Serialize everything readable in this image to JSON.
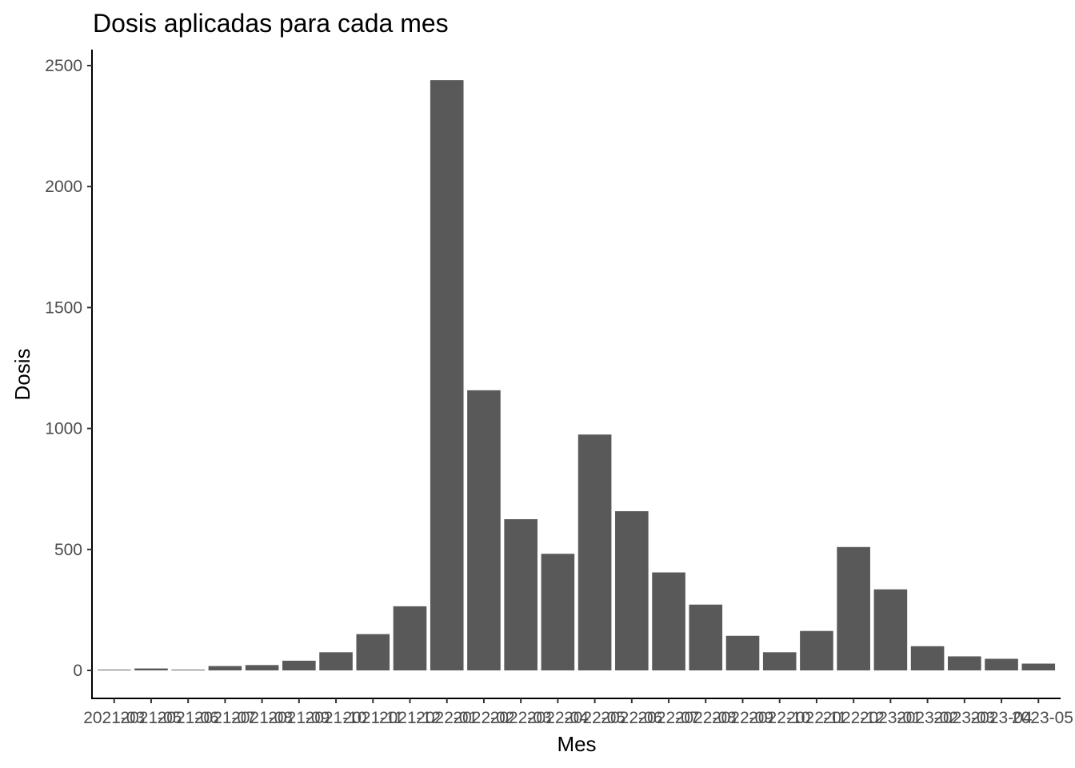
{
  "chart_data": {
    "type": "bar",
    "title": "Dosis aplicadas para cada mes",
    "xlabel": "Mes",
    "ylabel": "Dosis",
    "ylim": [
      -115,
      2560
    ],
    "yticks": [
      0,
      500,
      1000,
      1500,
      2000,
      2500
    ],
    "grid": false,
    "bar_color": "#595959",
    "categories": [
      "2021-03",
      "2021-05",
      "2021-06",
      "2021-07",
      "2021-08",
      "2021-09",
      "2021-10",
      "2021-11",
      "2021-12",
      "2022-01",
      "2022-02",
      "2022-03",
      "2022-04",
      "2022-05",
      "2022-06",
      "2022-07",
      "2022-08",
      "2022-09",
      "2022-10",
      "2022-11",
      "2022-12",
      "2023-01",
      "2023-02",
      "2023-03",
      "2023-04",
      "2023-05"
    ],
    "values": [
      3,
      8,
      3,
      18,
      22,
      40,
      75,
      150,
      265,
      2440,
      1158,
      625,
      482,
      975,
      658,
      405,
      272,
      143,
      75,
      163,
      510,
      335,
      100,
      58,
      48,
      28
    ]
  }
}
